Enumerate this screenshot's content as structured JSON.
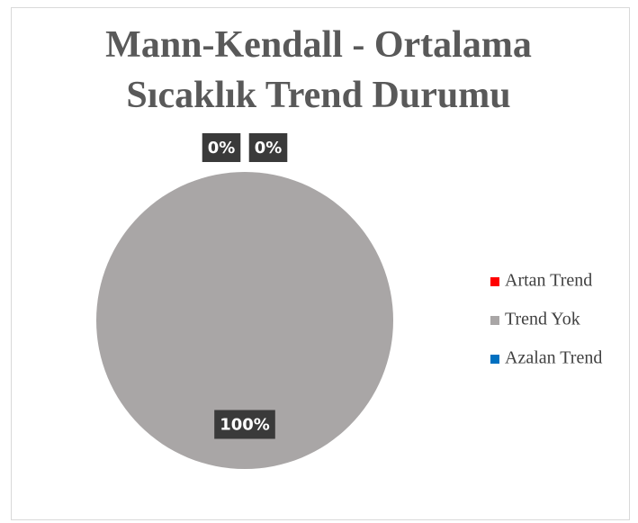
{
  "chart_data": {
    "type": "pie",
    "title": "Mann-Kendall - Ortalama Sıcaklık Trend Durumu",
    "categories": [
      "Artan Trend",
      "Trend Yok",
      "Azalan Trend"
    ],
    "values": [
      0,
      100,
      0
    ],
    "value_labels": [
      "0%",
      "100%",
      "0%"
    ],
    "colors": [
      "#ff0000",
      "#a9a6a6",
      "#0070c0"
    ],
    "legend": "right"
  }
}
